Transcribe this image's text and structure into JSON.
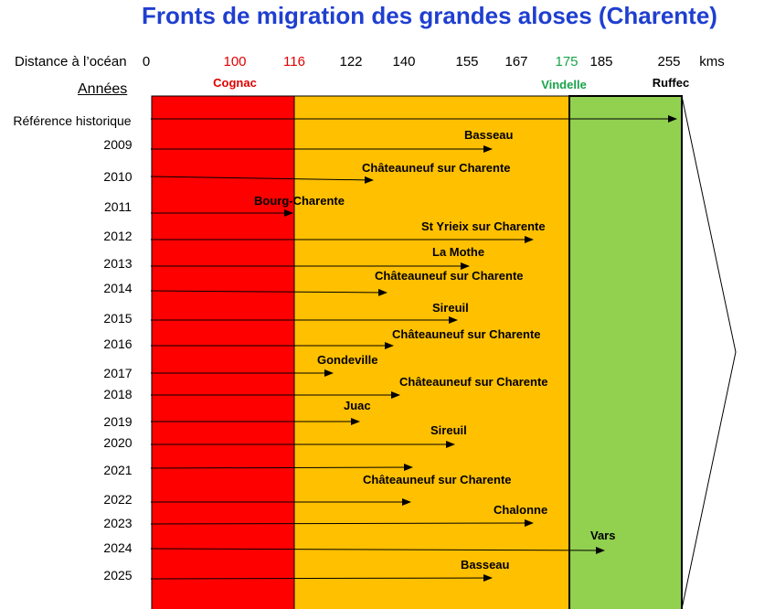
{
  "title": "Fronts de migration des grandes aloses (Charente)",
  "axis": {
    "label": "Distance à l’océan",
    "ticks": [
      {
        "v": "0",
        "color": "#000000"
      },
      {
        "v": "100",
        "color": "#e00000"
      },
      {
        "v": "116",
        "color": "#e00000"
      },
      {
        "v": "122",
        "color": "#000000"
      },
      {
        "v": "140",
        "color": "#000000"
      },
      {
        "v": "155",
        "color": "#000000"
      },
      {
        "v": "167",
        "color": "#000000"
      },
      {
        "v": "175",
        "color": "#1aa34a"
      },
      {
        "v": "185",
        "color": "#000000"
      },
      {
        "v": "255",
        "color": "#000000"
      }
    ],
    "unit": "kms"
  },
  "cities": [
    {
      "name": "Cognac",
      "km": 116,
      "color": "#e00000"
    },
    {
      "name": "Vindelle",
      "km": 175,
      "color": "#1aa34a"
    },
    {
      "name": "Ruffec",
      "km": 255,
      "color": "#000000"
    }
  ],
  "years_header": "Années",
  "zones": [
    {
      "color": "#ff0000"
    },
    {
      "color": "#ffc000"
    },
    {
      "color": "#92d050"
    }
  ],
  "rows": [
    {
      "year": "Référence historique",
      "place": ""
    },
    {
      "year": "2009",
      "place": "Basseau"
    },
    {
      "year": "2010",
      "place": "Châteauneuf sur Charente"
    },
    {
      "year": "2011",
      "place": "Bourg-Charente"
    },
    {
      "year": "2012",
      "place": "St Yrieix sur Charente"
    },
    {
      "year": "2013",
      "place": "La Mothe"
    },
    {
      "year": "2014",
      "place": "Châteauneuf sur Charente"
    },
    {
      "year": "2015",
      "place": "Sireuil"
    },
    {
      "year": "2016",
      "place": "Châteauneuf sur Charente"
    },
    {
      "year": "2017",
      "place": "Gondeville"
    },
    {
      "year": "2018",
      "place": "Châteauneuf sur Charente"
    },
    {
      "year": "2019",
      "place": "Juac"
    },
    {
      "year": "2020",
      "place": "Sireuil"
    },
    {
      "year": "2021",
      "place": "Châteauneuf sur Charente"
    },
    {
      "year": "2022",
      "place": ""
    },
    {
      "year": "2023",
      "place": "Chalonne"
    },
    {
      "year": "2024",
      "place": "Vars"
    },
    {
      "year": "2025",
      "place": "Basseau"
    }
  ]
}
